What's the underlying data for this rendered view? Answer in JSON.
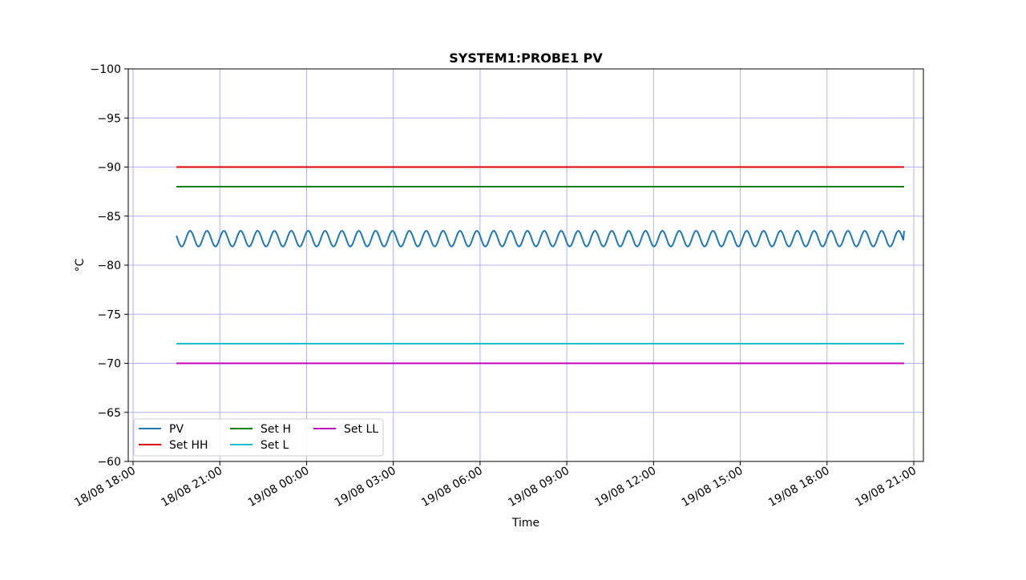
{
  "chart_data": {
    "type": "line",
    "title": "SYSTEM1:PROBE1 PV",
    "xlabel": "Time",
    "ylabel": "°C",
    "x_range": [
      "2024-08-18 17:50",
      "2024-08-19 21:20"
    ],
    "ylim": [
      -60,
      -100
    ],
    "y_inverted": true,
    "x_ticks": [
      "18/08 18:00",
      "18/08 21:00",
      "19/08 00:00",
      "19/08 03:00",
      "19/08 06:00",
      "19/08 09:00",
      "19/08 12:00",
      "19/08 15:00",
      "19/08 18:00",
      "19/08 21:00"
    ],
    "y_ticks": [
      "−100",
      "−95",
      "−90",
      "−85",
      "−80",
      "−75",
      "−70",
      "−65",
      "−60"
    ],
    "y_tick_values": [
      -100,
      -95,
      -90,
      -85,
      -80,
      -75,
      -70,
      -65,
      -60
    ],
    "grid": true,
    "legend_position": "lower-left",
    "series": [
      {
        "name": "PV",
        "color": "#1f77b4",
        "start": "2024-08-18 19:30",
        "end": "2024-08-19 20:40",
        "center": -82.7,
        "amplitude": 0.8,
        "period_minutes": 35,
        "start_value": -83.0,
        "end_value": -83.5
      },
      {
        "name": "Set HH",
        "color": "#e00000",
        "start": "2024-08-18 19:30",
        "end": "2024-08-19 20:40",
        "value": -90
      },
      {
        "name": "Set H",
        "color": "#008000",
        "start": "2024-08-18 19:30",
        "end": "2024-08-19 20:40",
        "value": -88
      },
      {
        "name": "Set L",
        "color": "#17becf",
        "start": "2024-08-18 19:30",
        "end": "2024-08-19 20:40",
        "value": -72
      },
      {
        "name": "Set LL",
        "color": "#bf00bf",
        "start": "2024-08-18 19:30",
        "end": "2024-08-19 20:40",
        "value": -70
      }
    ],
    "legend_columns": [
      [
        "PV",
        "Set HH"
      ],
      [
        "Set H",
        "Set L"
      ],
      [
        "Set LL"
      ]
    ]
  }
}
